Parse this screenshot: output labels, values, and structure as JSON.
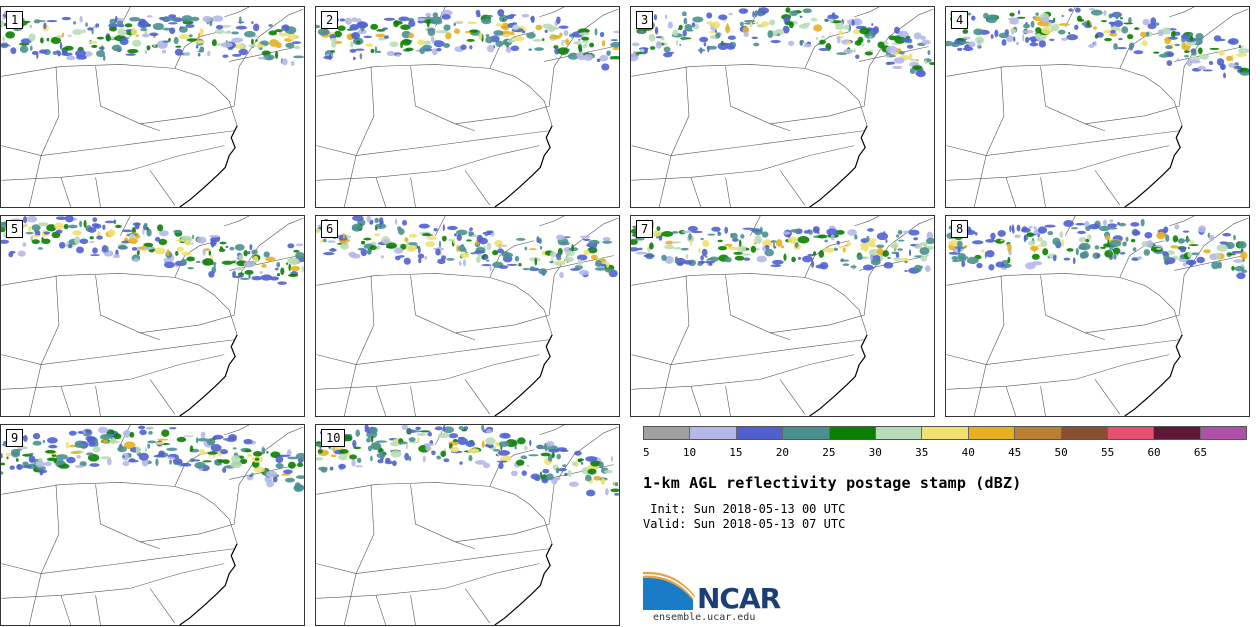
{
  "panels": [
    {
      "label": "1"
    },
    {
      "label": "2"
    },
    {
      "label": "3"
    },
    {
      "label": "4"
    },
    {
      "label": "5"
    },
    {
      "label": "6"
    },
    {
      "label": "7"
    },
    {
      "label": "8"
    },
    {
      "label": "9"
    },
    {
      "label": "10"
    }
  ],
  "colorbar": {
    "colors": [
      "#a0a0a0",
      "#b4b8e8",
      "#5060d0",
      "#4a9090",
      "#0a8000",
      "#b8dcb8",
      "#f0e070",
      "#e8b020",
      "#b88030",
      "#885030",
      "#e85070",
      "#601838",
      "#b050a8"
    ],
    "ticks": [
      "5",
      "10",
      "15",
      "20",
      "25",
      "30",
      "35",
      "40",
      "45",
      "50",
      "55",
      "60",
      "65"
    ]
  },
  "title": "1-km AGL reflectivity postage stamp (dBZ)",
  "init_line": " Init: Sun 2018-05-13 00 UTC",
  "valid_line": "Valid: Sun 2018-05-13 07 UTC",
  "logo": {
    "name": "NCAR",
    "url": "ensemble.ucar.edu"
  }
}
